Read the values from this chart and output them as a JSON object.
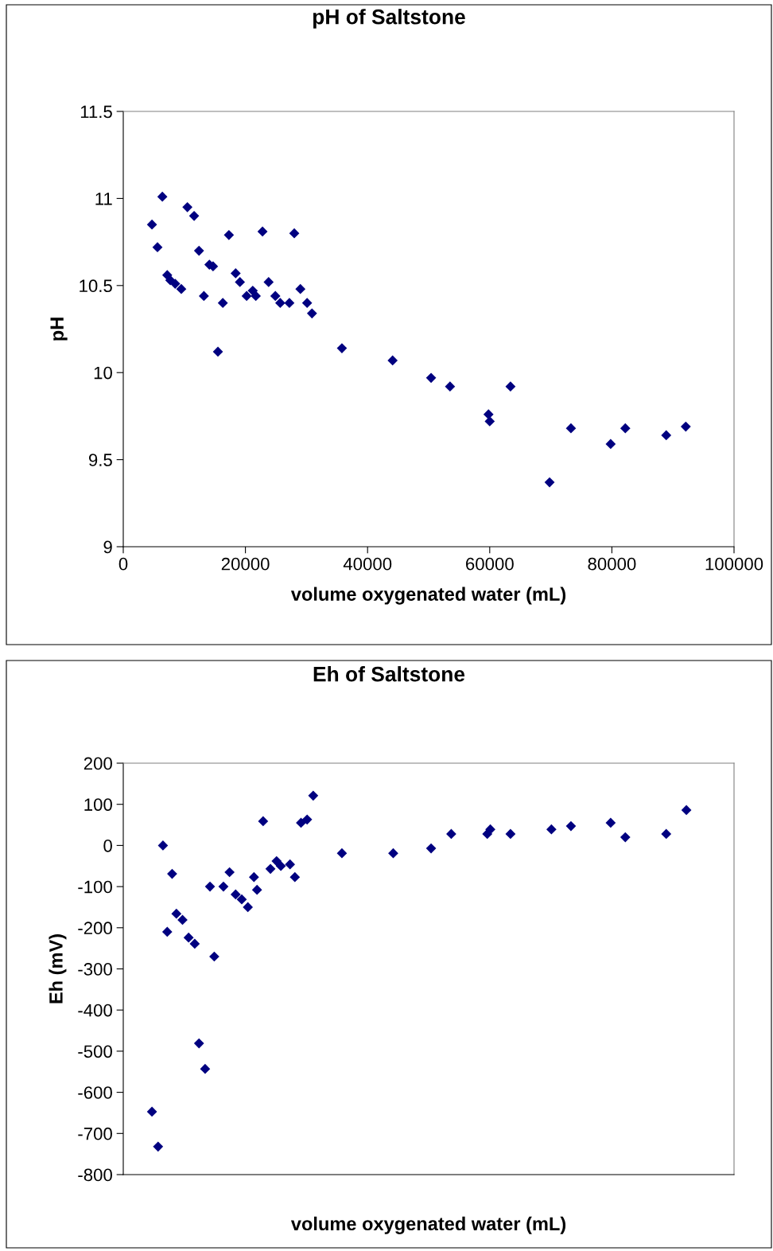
{
  "chart_data": [
    {
      "type": "scatter",
      "title": "pH of Saltstone",
      "xlabel": "volume oxygenated water (mL)",
      "ylabel": "pH",
      "marker": "diamond",
      "grid": false,
      "xlim": [
        0,
        100000
      ],
      "xticks": [
        0,
        20000,
        40000,
        60000,
        80000,
        100000
      ],
      "ylim": [
        9,
        11.5
      ],
      "yticks": [
        9,
        9.5,
        10,
        10.5,
        11,
        11.5
      ],
      "series": [
        {
          "color": "#000080",
          "x": [
            4700,
            5600,
            6400,
            7200,
            7700,
            8500,
            9500,
            10500,
            11600,
            12400,
            13200,
            14100,
            14700,
            15500,
            16300,
            17300,
            18400,
            19100,
            20200,
            21200,
            21700,
            22800,
            23800,
            24900,
            25700,
            27200,
            28000,
            29000,
            30100,
            30900,
            35800,
            44100,
            50400,
            53500,
            59800,
            60000,
            63400,
            69800,
            73300,
            79800,
            82200,
            88900,
            92100
          ],
          "values": [
            10.85,
            10.72,
            11.01,
            10.56,
            10.53,
            10.51,
            10.48,
            10.95,
            10.9,
            10.7,
            10.44,
            10.62,
            10.61,
            10.12,
            10.4,
            10.79,
            10.57,
            10.52,
            10.44,
            10.47,
            10.44,
            10.81,
            10.52,
            10.44,
            10.4,
            10.4,
            10.8,
            10.48,
            10.4,
            10.34,
            10.14,
            10.07,
            9.97,
            9.92,
            9.76,
            9.72,
            9.92,
            9.37,
            9.68,
            9.59,
            9.68,
            9.64,
            9.69
          ]
        }
      ]
    },
    {
      "type": "scatter",
      "title": "Eh of Saltstone",
      "xlabel": "volume oxygenated water (mL)",
      "ylabel": "Eh (mV)",
      "marker": "diamond",
      "grid": false,
      "tick_labels": "y",
      "xlim": [
        0,
        100000
      ],
      "ylim": [
        -800,
        200
      ],
      "yticks": [
        -800,
        -700,
        -600,
        -500,
        -400,
        -300,
        -200,
        -100,
        0,
        100,
        200
      ],
      "series": [
        {
          "color": "#000080",
          "x": [
            4700,
            5700,
            6500,
            7200,
            8000,
            8700,
            9700,
            10700,
            11700,
            12400,
            13400,
            14200,
            14900,
            16400,
            17400,
            18400,
            19400,
            20400,
            21400,
            21900,
            22900,
            24100,
            25100,
            25800,
            27300,
            28100,
            29100,
            30100,
            31100,
            35800,
            44200,
            50400,
            53700,
            59600,
            60100,
            63400,
            70100,
            73300,
            79800,
            82200,
            88900,
            92200
          ],
          "values": [
            -647,
            -732,
            0,
            -210,
            -69,
            -166,
            -181,
            -224,
            -239,
            -481,
            -543,
            -100,
            -270,
            -100,
            -65,
            -119,
            -131,
            -150,
            -77,
            -108,
            59,
            -57,
            -38,
            -50,
            -46,
            -77,
            55,
            63,
            121,
            -19,
            -19,
            -7,
            28,
            28,
            39,
            28,
            39,
            47,
            55,
            20,
            28,
            86
          ]
        }
      ]
    }
  ]
}
